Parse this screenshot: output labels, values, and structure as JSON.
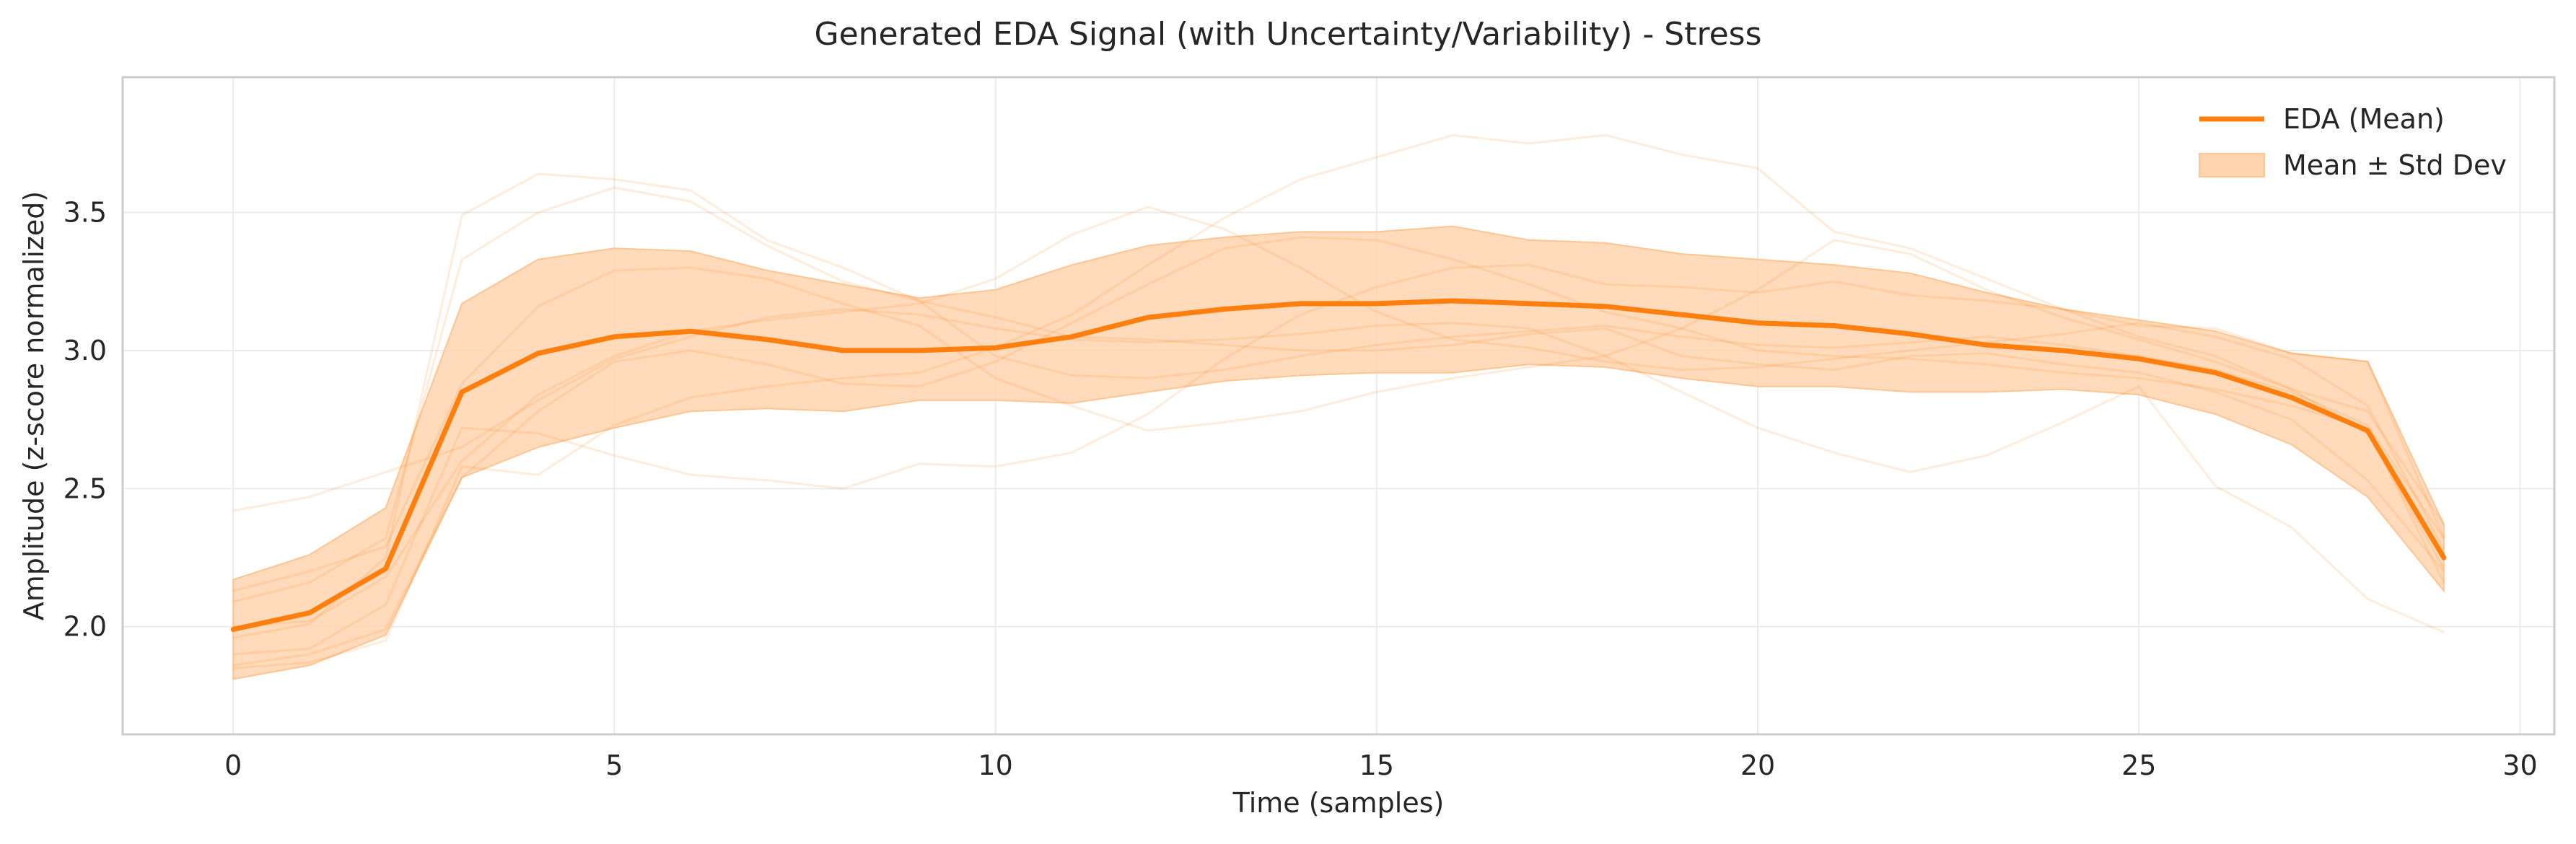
{
  "chart_data": {
    "type": "line",
    "title": "Generated EDA Signal (with Uncertainty/Variability) - Stress",
    "xlabel": "Time (samples)",
    "ylabel": "Amplitude (z-score normalized)",
    "xlim": [
      -1.45,
      30.45
    ],
    "ylim": [
      1.61,
      3.99
    ],
    "xticks": [
      0,
      5,
      10,
      15,
      20,
      25,
      30
    ],
    "yticks": [
      2.0,
      2.5,
      3.0,
      3.5
    ],
    "grid": true,
    "legend_position": "top-right",
    "x": [
      0,
      1,
      2,
      3,
      4,
      5,
      6,
      7,
      8,
      9,
      10,
      11,
      12,
      13,
      14,
      15,
      16,
      17,
      18,
      19,
      20,
      21,
      22,
      23,
      24,
      25,
      26,
      27,
      28,
      29
    ],
    "series": [
      {
        "name": "EDA (Mean)",
        "kind": "line",
        "color": "#ff7f0e",
        "values": [
          1.99,
          2.05,
          2.21,
          2.85,
          2.99,
          3.05,
          3.07,
          3.04,
          3.0,
          3.0,
          3.01,
          3.05,
          3.12,
          3.15,
          3.17,
          3.17,
          3.18,
          3.17,
          3.16,
          3.13,
          3.1,
          3.09,
          3.06,
          3.02,
          3.0,
          2.97,
          2.92,
          2.83,
          2.71,
          2.25
        ]
      },
      {
        "name": "Mean ± Std Dev",
        "kind": "band",
        "color": "#ffd5b0",
        "upper": [
          2.17,
          2.26,
          2.43,
          3.17,
          3.33,
          3.37,
          3.36,
          3.29,
          3.24,
          3.19,
          3.22,
          3.31,
          3.38,
          3.41,
          3.43,
          3.43,
          3.45,
          3.4,
          3.39,
          3.35,
          3.33,
          3.31,
          3.28,
          3.21,
          3.15,
          3.11,
          3.07,
          2.99,
          2.96,
          2.37
        ],
        "lower": [
          1.81,
          1.86,
          1.97,
          2.54,
          2.65,
          2.72,
          2.78,
          2.79,
          2.78,
          2.82,
          2.82,
          2.81,
          2.85,
          2.89,
          2.91,
          2.92,
          2.92,
          2.95,
          2.94,
          2.9,
          2.87,
          2.87,
          2.85,
          2.85,
          2.86,
          2.84,
          2.77,
          2.66,
          2.47,
          2.13
        ]
      },
      {
        "kind": "sample",
        "color": "#ff7f0e",
        "values": [
          1.96,
          2.01,
          2.25,
          3.49,
          3.64,
          3.62,
          3.58,
          3.4,
          3.3,
          3.18,
          3.12,
          3.05,
          3.04,
          3.02,
          3.0,
          3.0,
          3.02,
          3.06,
          3.08,
          2.98,
          2.95,
          2.93,
          2.98,
          2.99,
          2.95,
          2.92,
          2.85,
          2.75,
          2.53,
          2.2
        ]
      },
      {
        "kind": "sample",
        "color": "#ff7f0e",
        "values": [
          2.42,
          2.47,
          2.56,
          2.65,
          2.82,
          2.97,
          3.05,
          3.12,
          3.15,
          3.13,
          3.08,
          3.04,
          3.03,
          3.04,
          3.06,
          3.09,
          3.1,
          3.08,
          2.98,
          2.85,
          2.72,
          2.63,
          2.56,
          2.62,
          2.74,
          2.87,
          2.51,
          2.36,
          2.1,
          1.98
        ]
      },
      {
        "kind": "sample",
        "color": "#ff7f0e",
        "values": [
          1.85,
          1.87,
          1.95,
          2.58,
          2.55,
          2.73,
          2.83,
          2.87,
          2.9,
          2.92,
          3.01,
          3.13,
          3.31,
          3.48,
          3.62,
          3.7,
          3.78,
          3.75,
          3.78,
          3.71,
          3.66,
          3.43,
          3.37,
          3.26,
          3.15,
          3.05,
          2.98,
          2.86,
          2.78,
          2.37
        ]
      },
      {
        "kind": "sample",
        "color": "#ff7f0e",
        "values": [
          2.09,
          2.16,
          2.32,
          3.33,
          3.5,
          3.59,
          3.54,
          3.38,
          3.25,
          3.18,
          2.98,
          2.91,
          2.9,
          2.93,
          2.98,
          3.02,
          3.05,
          3.07,
          3.09,
          3.05,
          3.02,
          3.01,
          3.03,
          3.05,
          3.02,
          2.98,
          2.93,
          2.85,
          2.73,
          2.32
        ]
      },
      {
        "kind": "sample",
        "color": "#ff7f0e",
        "values": [
          1.9,
          1.92,
          2.08,
          2.72,
          2.7,
          2.62,
          2.55,
          2.53,
          2.5,
          2.59,
          2.58,
          2.63,
          2.77,
          2.97,
          3.13,
          3.23,
          3.3,
          3.31,
          3.24,
          3.23,
          3.21,
          3.25,
          3.2,
          3.18,
          3.15,
          3.09,
          3.08,
          2.99,
          2.96,
          2.32
        ]
      },
      {
        "kind": "sample",
        "color": "#ff7f0e",
        "values": [
          2.0,
          2.02,
          2.18,
          2.6,
          2.84,
          2.98,
          3.07,
          3.11,
          3.14,
          3.17,
          3.26,
          3.42,
          3.52,
          3.44,
          3.3,
          3.14,
          3.04,
          3.01,
          2.96,
          2.93,
          2.94,
          2.97,
          3.0,
          3.03,
          3.06,
          3.1,
          3.05,
          2.97,
          2.8,
          2.28
        ]
      },
      {
        "kind": "sample",
        "color": "#ff7f0e",
        "values": [
          2.13,
          2.2,
          2.29,
          2.88,
          3.16,
          3.29,
          3.3,
          3.26,
          3.17,
          3.09,
          2.9,
          2.8,
          2.71,
          2.74,
          2.78,
          2.85,
          2.9,
          2.94,
          2.98,
          3.08,
          3.22,
          3.4,
          3.35,
          3.22,
          3.12,
          3.04,
          2.96,
          2.86,
          2.7,
          2.21
        ]
      },
      {
        "kind": "sample",
        "color": "#ff7f0e",
        "values": [
          1.86,
          1.9,
          1.99,
          2.54,
          2.78,
          2.96,
          3.0,
          2.95,
          2.88,
          2.87,
          2.96,
          3.1,
          3.24,
          3.37,
          3.41,
          3.4,
          3.33,
          3.24,
          3.14,
          3.08,
          3.0,
          2.98,
          2.97,
          2.95,
          2.92,
          2.9,
          2.86,
          2.8,
          2.72,
          2.16
        ]
      }
    ]
  }
}
